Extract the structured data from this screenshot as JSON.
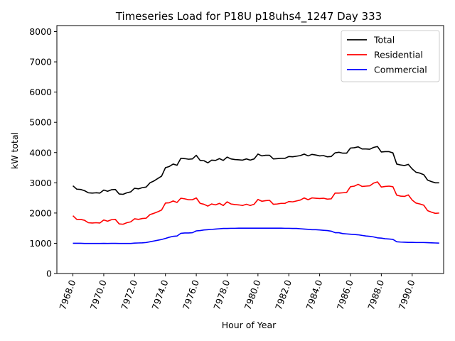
{
  "chart_data": {
    "type": "line",
    "title": "Timeseries Load for P18U p18uhs4_1247  Day 333",
    "xlabel": "Hour of Year",
    "ylabel": "kW total",
    "xlim": [
      7966.96,
      7992.04
    ],
    "ylim": [
      0,
      8200
    ],
    "x_ticks": [
      7968,
      7970,
      7972,
      7974,
      7976,
      7978,
      7980,
      7982,
      7984,
      7986,
      7988,
      7990
    ],
    "x_tick_labels": [
      "7968.0",
      "7970.0",
      "7972.0",
      "7974.0",
      "7976.0",
      "7978.0",
      "7980.0",
      "7982.0",
      "7984.0",
      "7986.0",
      "7988.0",
      "7990.0"
    ],
    "y_ticks": [
      0,
      1000,
      2000,
      3000,
      4000,
      5000,
      6000,
      7000,
      8000
    ],
    "y_tick_labels": [
      "0",
      "1000",
      "2000",
      "3000",
      "4000",
      "5000",
      "6000",
      "7000",
      "8000"
    ],
    "legend_position": "top-right",
    "x": [
      7968.0,
      7968.25,
      7968.5,
      7968.75,
      7969.0,
      7969.25,
      7969.5,
      7969.75,
      7970.0,
      7970.25,
      7970.5,
      7970.75,
      7971.0,
      7971.25,
      7971.5,
      7971.75,
      7972.0,
      7972.25,
      7972.5,
      7972.75,
      7973.0,
      7973.25,
      7973.5,
      7973.75,
      7974.0,
      7974.25,
      7974.5,
      7974.75,
      7975.0,
      7975.25,
      7975.5,
      7975.75,
      7976.0,
      7976.25,
      7976.5,
      7976.75,
      7977.0,
      7977.25,
      7977.5,
      7977.75,
      7978.0,
      7978.25,
      7978.5,
      7978.75,
      7979.0,
      7979.25,
      7979.5,
      7979.75,
      7980.0,
      7980.25,
      7980.5,
      7980.75,
      7981.0,
      7981.25,
      7981.5,
      7981.75,
      7982.0,
      7982.25,
      7982.5,
      7982.75,
      7983.0,
      7983.25,
      7983.5,
      7983.75,
      7984.0,
      7984.25,
      7984.5,
      7984.75,
      7985.0,
      7985.25,
      7985.5,
      7985.75,
      7986.0,
      7986.25,
      7986.5,
      7986.75,
      7987.0,
      7987.25,
      7987.5,
      7987.75,
      7988.0,
      7988.25,
      7988.5,
      7988.75,
      7989.0,
      7989.25,
      7989.5,
      7989.75,
      7990.0,
      7990.25,
      7990.5,
      7990.75,
      7991.0,
      7991.25,
      7991.5,
      7991.75
    ],
    "series": [
      {
        "name": "Total",
        "color": "#000000",
        "values": [
          2900,
          2790,
          2780,
          2740,
          2670,
          2660,
          2670,
          2660,
          2760,
          2720,
          2770,
          2780,
          2630,
          2620,
          2670,
          2700,
          2820,
          2800,
          2840,
          2860,
          3000,
          3060,
          3140,
          3220,
          3500,
          3540,
          3620,
          3580,
          3810,
          3800,
          3780,
          3790,
          3910,
          3740,
          3730,
          3660,
          3750,
          3740,
          3800,
          3740,
          3850,
          3790,
          3770,
          3760,
          3750,
          3790,
          3750,
          3790,
          3950,
          3890,
          3910,
          3910,
          3790,
          3800,
          3810,
          3810,
          3870,
          3860,
          3880,
          3900,
          3950,
          3890,
          3940,
          3920,
          3890,
          3900,
          3860,
          3870,
          3990,
          4010,
          3980,
          3980,
          4150,
          4160,
          4190,
          4120,
          4120,
          4110,
          4170,
          4200,
          4020,
          4030,
          4030,
          3990,
          3620,
          3590,
          3570,
          3610,
          3460,
          3350,
          3320,
          3270,
          3090,
          3040,
          3000,
          3000
        ]
      },
      {
        "name": "Residential",
        "color": "#ff0000",
        "values": [
          1910,
          1790,
          1790,
          1760,
          1680,
          1670,
          1680,
          1670,
          1770,
          1730,
          1780,
          1790,
          1640,
          1630,
          1680,
          1710,
          1810,
          1790,
          1820,
          1830,
          1950,
          1990,
          2040,
          2100,
          2330,
          2340,
          2400,
          2350,
          2490,
          2470,
          2440,
          2440,
          2500,
          2320,
          2290,
          2230,
          2300,
          2270,
          2320,
          2250,
          2370,
          2300,
          2280,
          2270,
          2250,
          2290,
          2250,
          2290,
          2450,
          2390,
          2410,
          2420,
          2290,
          2300,
          2320,
          2320,
          2380,
          2370,
          2400,
          2430,
          2500,
          2440,
          2500,
          2490,
          2480,
          2490,
          2460,
          2470,
          2660,
          2660,
          2670,
          2680,
          2870,
          2890,
          2950,
          2880,
          2890,
          2900,
          2990,
          3030,
          2860,
          2880,
          2890,
          2870,
          2590,
          2560,
          2550,
          2600,
          2430,
          2330,
          2300,
          2260,
          2080,
          2030,
          1990,
          2000
        ]
      },
      {
        "name": "Commercial",
        "color": "#0000ff",
        "values": [
          1000,
          1000,
          1000,
          995,
          995,
          995,
          995,
          995,
          998,
          995,
          998,
          998,
          995,
          995,
          995,
          995,
          1005,
          1010,
          1015,
          1025,
          1050,
          1075,
          1100,
          1125,
          1160,
          1200,
          1230,
          1240,
          1330,
          1340,
          1340,
          1350,
          1410,
          1420,
          1440,
          1450,
          1460,
          1470,
          1480,
          1490,
          1490,
          1495,
          1495,
          1500,
          1500,
          1500,
          1500,
          1500,
          1500,
          1500,
          1500,
          1500,
          1500,
          1500,
          1500,
          1495,
          1495,
          1490,
          1490,
          1480,
          1470,
          1460,
          1450,
          1450,
          1440,
          1430,
          1420,
          1400,
          1350,
          1350,
          1320,
          1310,
          1300,
          1290,
          1280,
          1260,
          1240,
          1230,
          1210,
          1180,
          1170,
          1150,
          1140,
          1130,
          1050,
          1040,
          1035,
          1030,
          1030,
          1025,
          1025,
          1025,
          1020,
          1015,
          1010,
          1005
        ]
      }
    ]
  }
}
